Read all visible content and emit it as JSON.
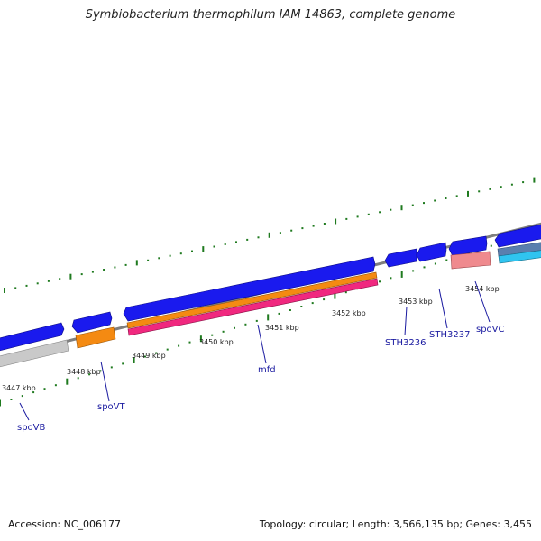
{
  "title": "Symbiobacterium thermophilum IAM 14863, complete genome",
  "footer": {
    "accession": "Accession: NC_006177",
    "summary": "Topology: circular; Length: 3,566,135 bp; Genes: 3,455"
  },
  "colors": {
    "backbone": "#7f7f7f",
    "forward_gene": "#1a1aee",
    "dots": "#1f7a1f",
    "gene_label": "#1a1aa0"
  },
  "scale_ticks": [
    {
      "label": "3447 kbp"
    },
    {
      "label": "3448 kbp"
    },
    {
      "label": "3449 kbp"
    },
    {
      "label": "3450 kbp"
    },
    {
      "label": "3451 kbp"
    },
    {
      "label": "3452 kbp"
    },
    {
      "label": "3453 kbp"
    },
    {
      "label": "3454 kbp"
    }
  ],
  "gene_labels": [
    {
      "name": "spoVB"
    },
    {
      "name": "spoVT"
    },
    {
      "name": "mfd"
    },
    {
      "name": "STH3236"
    },
    {
      "name": "STH3237"
    },
    {
      "name": "spoVC"
    }
  ]
}
